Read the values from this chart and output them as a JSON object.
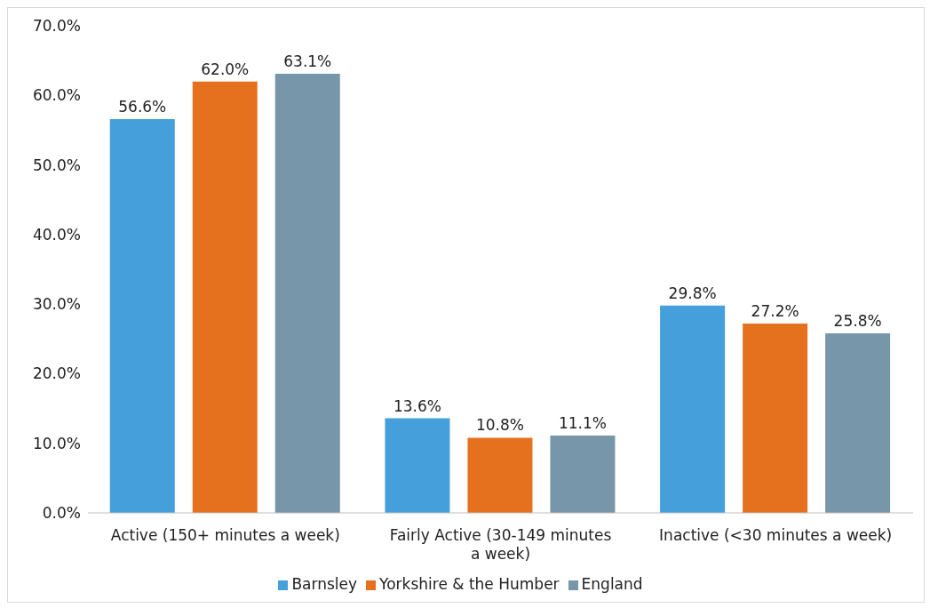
{
  "chart_data": {
    "type": "bar",
    "categories": [
      "Active (150+ minutes a week)",
      "Fairly Active (30-149 minutes a week)",
      "Inactive (<30 minutes a week)"
    ],
    "series": [
      {
        "name": "Barnsley",
        "color": "#449fda",
        "values": [
          56.6,
          13.6,
          29.8
        ],
        "value_labels": [
          "56.6%",
          "13.6%",
          "29.8%"
        ]
      },
      {
        "name": "Yorkshire & the Humber",
        "color": "#e5711e",
        "values": [
          62.0,
          10.8,
          27.2
        ],
        "value_labels": [
          "62.0%",
          "10.8%",
          "27.2%"
        ]
      },
      {
        "name": "England",
        "color": "#7896aa",
        "values": [
          63.1,
          11.1,
          25.8
        ],
        "value_labels": [
          "63.1%",
          "11.1%",
          "25.8%"
        ]
      }
    ],
    "ylim": [
      0,
      70
    ],
    "yticks": [
      {
        "value": 0,
        "label": "0.0%"
      },
      {
        "value": 10,
        "label": "10.0%"
      },
      {
        "value": 20,
        "label": "20.0%"
      },
      {
        "value": 30,
        "label": "30.0%"
      },
      {
        "value": 40,
        "label": "40.0%"
      },
      {
        "value": 50,
        "label": "50.0%"
      },
      {
        "value": 60,
        "label": "60.0%"
      },
      {
        "value": 70,
        "label": "70.0%"
      }
    ],
    "grid": false,
    "legend": "bottom"
  }
}
